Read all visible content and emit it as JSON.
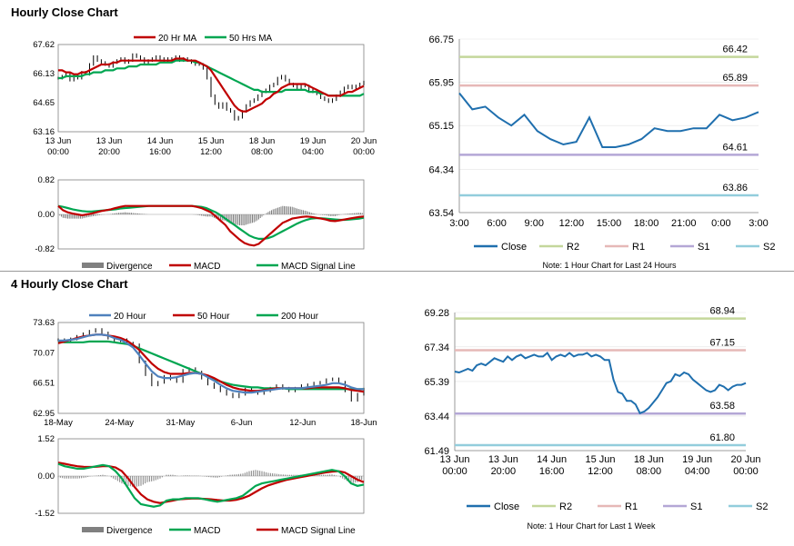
{
  "sections": {
    "hourly_title": "Hourly Close Chart",
    "four_hourly_title": "4 Hourly Close Chart"
  },
  "colors": {
    "ma20": "#c00000",
    "ma50": "#00a651",
    "ma200": "#00a651",
    "ma20_4h": "#4f81bd",
    "ma50_4h": "#c00000",
    "close": "#1f6fae",
    "r2": "#c4d79b",
    "r1": "#e6b8b7",
    "s1": "#b4a7d6",
    "s2": "#92cddc",
    "divergence": "#808080",
    "macd": "#c00000",
    "signal": "#00a651",
    "price": "#000000",
    "grid": "#cccccc",
    "axis": "#808080"
  },
  "chart_data": [
    {
      "id": "hourly-price",
      "type": "line",
      "title": "Hourly Close Chart",
      "legend": [
        "20 Hr MA",
        "50 Hrs MA"
      ],
      "ylim": [
        63.16,
        67.62
      ],
      "yticks": [
        "67.62",
        "66.13",
        "64.65",
        "63.16"
      ],
      "ytick_values": [
        67.62,
        66.13,
        64.65,
        63.16
      ],
      "xtick_labels": [
        [
          "13 Jun",
          "00:00"
        ],
        [
          "13 Jun",
          "20:00"
        ],
        [
          "14 Jun",
          "16:00"
        ],
        [
          "15 Jun",
          "12:00"
        ],
        [
          "18 Jun",
          "08:00"
        ],
        [
          "19 Jun",
          "04:00"
        ],
        [
          "20 Jun",
          "00:00"
        ]
      ],
      "price": [
        65.9,
        66.0,
        66.1,
        65.8,
        66.0,
        65.9,
        66.2,
        66.1,
        66.6,
        67.0,
        66.8,
        66.7,
        66.6,
        66.5,
        66.7,
        66.8,
        66.9,
        66.7,
        66.8,
        67.1,
        67.0,
        66.9,
        66.7,
        66.8,
        66.9,
        67.0,
        66.9,
        66.8,
        66.9,
        66.9,
        67.0,
        66.8,
        66.9,
        66.8,
        66.7,
        66.6,
        66.6,
        66.4,
        65.9,
        65.0,
        64.6,
        64.4,
        64.6,
        64.3,
        64.2,
        63.8,
        63.9,
        64.2,
        64.5,
        64.7,
        64.8,
        65.0,
        65.2,
        65.3,
        65.5,
        65.6,
        65.9,
        66.0,
        65.8,
        65.6,
        65.5,
        65.4,
        65.5,
        65.5,
        65.3,
        65.2,
        65.1,
        64.9,
        64.8,
        64.7,
        64.8,
        65.0,
        65.2,
        65.4,
        65.5,
        65.4,
        65.5,
        65.6,
        65.7
      ],
      "ma20": [
        66.3,
        66.3,
        66.2,
        66.2,
        66.1,
        66.1,
        66.2,
        66.2,
        66.3,
        66.4,
        66.5,
        66.6,
        66.6,
        66.6,
        66.7,
        66.7,
        66.8,
        66.8,
        66.8,
        66.8,
        66.8,
        66.8,
        66.8,
        66.8,
        66.8,
        66.8,
        66.8,
        66.8,
        66.8,
        66.8,
        66.9,
        66.9,
        66.9,
        66.8,
        66.8,
        66.8,
        66.7,
        66.6,
        66.5,
        66.3,
        66.0,
        65.7,
        65.4,
        65.1,
        64.8,
        64.5,
        64.3,
        64.2,
        64.2,
        64.3,
        64.4,
        64.5,
        64.6,
        64.8,
        64.9,
        65.1,
        65.2,
        65.4,
        65.5,
        65.6,
        65.6,
        65.6,
        65.6,
        65.6,
        65.5,
        65.4,
        65.3,
        65.2,
        65.1,
        65.0,
        65.0,
        65.0,
        65.0,
        65.1,
        65.2,
        65.2,
        65.3,
        65.4,
        65.5
      ],
      "ma50": [
        65.9,
        65.9,
        66.0,
        66.0,
        66.0,
        66.0,
        66.0,
        66.1,
        66.1,
        66.2,
        66.2,
        66.2,
        66.3,
        66.3,
        66.3,
        66.4,
        66.4,
        66.4,
        66.5,
        66.5,
        66.5,
        66.6,
        66.6,
        66.6,
        66.6,
        66.6,
        66.7,
        66.7,
        66.7,
        66.7,
        66.8,
        66.8,
        66.8,
        66.8,
        66.8,
        66.7,
        66.7,
        66.6,
        66.5,
        66.4,
        66.3,
        66.2,
        66.1,
        66.0,
        65.9,
        65.8,
        65.7,
        65.6,
        65.5,
        65.4,
        65.3,
        65.3,
        65.2,
        65.2,
        65.2,
        65.2,
        65.2,
        65.2,
        65.3,
        65.3,
        65.3,
        65.3,
        65.3,
        65.3,
        65.2,
        65.2,
        65.2,
        65.1,
        65.1,
        65.0,
        65.0,
        65.0,
        65.0,
        65.0,
        65.0,
        65.0,
        65.0,
        65.0,
        65.1
      ]
    },
    {
      "id": "hourly-macd",
      "type": "line",
      "legend": [
        "Divergence",
        "MACD",
        "MACD Signal Line"
      ],
      "ylim": [
        -0.82,
        0.82
      ],
      "yticks": [
        "0.82",
        "0.00",
        "-0.82"
      ],
      "ytick_values": [
        0.82,
        0.0,
        -0.82
      ],
      "macd": [
        0.2,
        0.1,
        0.05,
        0.02,
        0.0,
        -0.02,
        0.0,
        0.02,
        0.05,
        0.08,
        0.1,
        0.12,
        0.15,
        0.18,
        0.2,
        0.2,
        0.2,
        0.2,
        0.2,
        0.2,
        0.2,
        0.2,
        0.2,
        0.2,
        0.2,
        0.2,
        0.2,
        0.2,
        0.2,
        0.18,
        0.15,
        0.1,
        0.05,
        -0.05,
        -0.15,
        -0.25,
        -0.4,
        -0.5,
        -0.6,
        -0.68,
        -0.72,
        -0.74,
        -0.7,
        -0.6,
        -0.5,
        -0.4,
        -0.3,
        -0.2,
        -0.15,
        -0.1,
        -0.08,
        -0.06,
        -0.05,
        -0.06,
        -0.08,
        -0.1,
        -0.12,
        -0.15,
        -0.16,
        -0.14,
        -0.12,
        -0.1,
        -0.08,
        -0.06,
        -0.05
      ],
      "signal": [
        0.2,
        0.18,
        0.15,
        0.12,
        0.1,
        0.08,
        0.07,
        0.07,
        0.08,
        0.09,
        0.1,
        0.11,
        0.12,
        0.14,
        0.15,
        0.16,
        0.17,
        0.18,
        0.19,
        0.2,
        0.2,
        0.2,
        0.2,
        0.2,
        0.2,
        0.2,
        0.2,
        0.2,
        0.2,
        0.19,
        0.18,
        0.15,
        0.1,
        0.05,
        -0.02,
        -0.1,
        -0.18,
        -0.26,
        -0.34,
        -0.42,
        -0.5,
        -0.55,
        -0.58,
        -0.58,
        -0.56,
        -0.52,
        -0.46,
        -0.4,
        -0.34,
        -0.28,
        -0.22,
        -0.17,
        -0.13,
        -0.1,
        -0.09,
        -0.09,
        -0.1,
        -0.11,
        -0.12,
        -0.13,
        -0.13,
        -0.12,
        -0.11,
        -0.1,
        -0.08
      ],
      "divergence": [
        0.0,
        -0.08,
        -0.1,
        -0.1,
        -0.1,
        -0.1,
        -0.07,
        -0.05,
        -0.03,
        -0.01,
        0.0,
        0.01,
        0.03,
        0.04,
        0.05,
        0.04,
        0.03,
        0.02,
        0.01,
        0.0,
        0.0,
        0.0,
        0.0,
        0.0,
        0.0,
        0.0,
        0.0,
        0.0,
        0.0,
        -0.01,
        -0.03,
        -0.05,
        -0.05,
        -0.1,
        -0.13,
        -0.15,
        -0.22,
        -0.24,
        -0.26,
        -0.26,
        -0.22,
        -0.19,
        -0.12,
        -0.02,
        0.06,
        0.12,
        0.16,
        0.2,
        0.19,
        0.18,
        0.14,
        0.11,
        0.08,
        0.04,
        0.01,
        -0.01,
        -0.02,
        -0.04,
        -0.04,
        -0.01,
        0.01,
        0.02,
        0.03,
        0.04,
        0.03
      ]
    },
    {
      "id": "hourly-pivots",
      "type": "line",
      "ylim": [
        63.54,
        66.75
      ],
      "yticks": [
        "66.75",
        "65.95",
        "65.15",
        "64.34",
        "63.54"
      ],
      "ytick_values": [
        66.75,
        65.95,
        65.15,
        64.34,
        63.54
      ],
      "xticks": [
        "3:00",
        "6:00",
        "9:00",
        "12:00",
        "15:00",
        "18:00",
        "21:00",
        "0:00",
        "3:00"
      ],
      "close": [
        65.75,
        65.45,
        65.5,
        65.3,
        65.15,
        65.35,
        65.05,
        64.9,
        64.8,
        64.85,
        65.3,
        64.75,
        64.75,
        64.8,
        64.9,
        65.1,
        65.05,
        65.05,
        65.1,
        65.1,
        65.35,
        65.25,
        65.3,
        65.4
      ],
      "levels": [
        {
          "name": "R2",
          "value": 66.42,
          "label": "66.42"
        },
        {
          "name": "R1",
          "value": 65.89,
          "label": "65.89"
        },
        {
          "name": "S1",
          "value": 64.61,
          "label": "64.61"
        },
        {
          "name": "S2",
          "value": 63.86,
          "label": "63.86"
        }
      ],
      "legend": [
        "Close",
        "R2",
        "R1",
        "S1",
        "S2"
      ],
      "note": "Note: 1 Hour Chart for Last 24 Hours"
    },
    {
      "id": "four-hourly-price",
      "type": "line",
      "title": "4 Hourly Close Chart",
      "legend": [
        "20 Hour",
        "50 Hour",
        "200 Hour"
      ],
      "ylim": [
        62.95,
        73.63
      ],
      "yticks": [
        "73.63",
        "70.07",
        "66.51",
        "62.95"
      ],
      "ytick_values": [
        73.63,
        70.07,
        66.51,
        62.95
      ],
      "xticks": [
        "18-May",
        "24-May",
        "31-May",
        "6-Jun",
        "12-Jun",
        "18-Jun"
      ],
      "price": [
        71.6,
        71.4,
        71.7,
        72.0,
        72.3,
        72.6,
        72.8,
        72.4,
        71.8,
        71.5,
        71.6,
        71.2,
        71.0,
        69.0,
        67.5,
        66.3,
        66.6,
        67.3,
        67.0,
        66.7,
        68.0,
        68.2,
        67.8,
        67.1,
        66.4,
        66.0,
        65.6,
        65.2,
        64.9,
        65.2,
        65.8,
        65.5,
        65.3,
        65.6,
        65.9,
        66.2,
        65.9,
        65.6,
        65.9,
        66.2,
        66.3,
        66.5,
        66.6,
        66.9,
        67.0,
        66.6,
        65.6,
        64.5,
        65.2,
        65.8
      ],
      "ma20": [
        71.5,
        71.5,
        71.6,
        71.7,
        71.9,
        72.1,
        72.2,
        72.2,
        72.1,
        71.8,
        71.6,
        71.2,
        70.7,
        69.8,
        68.8,
        67.9,
        67.3,
        67.1,
        67.1,
        67.2,
        67.4,
        67.6,
        67.7,
        67.6,
        67.2,
        66.8,
        66.3,
        65.9,
        65.6,
        65.5,
        65.4,
        65.4,
        65.5,
        65.6,
        65.7,
        65.8,
        65.9,
        65.9,
        65.9,
        65.9,
        66.0,
        66.1,
        66.2,
        66.3,
        66.5,
        66.5,
        66.3,
        66.0,
        65.8,
        65.8
      ],
      "ma50": [
        71.2,
        71.4,
        71.6,
        71.8,
        72.0,
        72.1,
        72.2,
        72.2,
        72.1,
        72.0,
        71.8,
        71.5,
        71.0,
        70.4,
        69.6,
        68.8,
        68.2,
        67.8,
        67.6,
        67.6,
        67.6,
        67.7,
        67.7,
        67.6,
        67.4,
        67.1,
        66.7,
        66.3,
        66.0,
        65.8,
        65.7,
        65.6,
        65.6,
        65.7,
        65.8,
        65.9,
        65.9,
        65.9,
        65.9,
        65.9,
        65.9,
        66.0,
        66.0,
        66.0,
        66.0,
        66.0,
        65.9,
        65.7,
        65.6,
        65.5
      ],
      "ma200": [
        71.4,
        71.3,
        71.3,
        71.3,
        71.3,
        71.4,
        71.4,
        71.4,
        71.4,
        71.3,
        71.2,
        71.1,
        70.9,
        70.6,
        70.3,
        70.0,
        69.7,
        69.4,
        69.1,
        68.8,
        68.5,
        68.2,
        67.9,
        67.6,
        67.3,
        67.0,
        66.7,
        66.5,
        66.3,
        66.2,
        66.1,
        66.0,
        66.0,
        65.9,
        65.9,
        65.9,
        65.9,
        65.8,
        65.8,
        65.8,
        65.8,
        65.8,
        65.8,
        65.8,
        65.8,
        65.8,
        65.8,
        65.8,
        65.8,
        65.8
      ]
    },
    {
      "id": "four-hourly-macd",
      "type": "line",
      "legend": [
        "Divergence",
        "MACD",
        "MACD Signal Line"
      ],
      "ylim": [
        -1.52,
        1.52
      ],
      "yticks": [
        "1.52",
        "0.00",
        "-1.52"
      ],
      "ytick_values": [
        1.52,
        0.0,
        -1.52
      ],
      "macd": [
        0.5,
        0.4,
        0.35,
        0.3,
        0.3,
        0.35,
        0.4,
        0.45,
        0.4,
        0.2,
        -0.1,
        -0.5,
        -0.9,
        -1.15,
        -1.2,
        -1.25,
        -1.2,
        -1.0,
        -0.95,
        -0.95,
        -0.9,
        -0.9,
        -0.9,
        -0.95,
        -1.0,
        -1.05,
        -1.0,
        -0.95,
        -0.9,
        -0.8,
        -0.6,
        -0.4,
        -0.3,
        -0.25,
        -0.2,
        -0.15,
        -0.1,
        -0.05,
        0.0,
        0.05,
        0.1,
        0.15,
        0.2,
        0.25,
        0.2,
        0.0,
        -0.3,
        -0.4,
        -0.35
      ],
      "signal": [
        0.55,
        0.5,
        0.45,
        0.4,
        0.38,
        0.37,
        0.38,
        0.4,
        0.4,
        0.35,
        0.2,
        -0.1,
        -0.45,
        -0.75,
        -0.95,
        -1.05,
        -1.1,
        -1.05,
        -1.0,
        -0.95,
        -0.93,
        -0.92,
        -0.92,
        -0.93,
        -0.95,
        -0.98,
        -1.0,
        -1.0,
        -0.97,
        -0.9,
        -0.8,
        -0.65,
        -0.5,
        -0.38,
        -0.3,
        -0.22,
        -0.15,
        -0.1,
        -0.05,
        0.0,
        0.05,
        0.1,
        0.15,
        0.18,
        0.2,
        0.15,
        0.0,
        -0.15,
        -0.25
      ],
      "divergence": [
        -0.05,
        -0.1,
        -0.1,
        -0.1,
        -0.08,
        -0.02,
        0.02,
        0.05,
        0.0,
        -0.15,
        -0.3,
        -0.4,
        -0.45,
        -0.4,
        -0.25,
        -0.2,
        -0.1,
        0.05,
        0.05,
        0.0,
        0.03,
        0.02,
        0.02,
        -0.02,
        -0.05,
        -0.07,
        0.0,
        0.05,
        0.07,
        0.1,
        0.2,
        0.25,
        0.2,
        0.13,
        0.1,
        0.07,
        0.05,
        0.05,
        0.05,
        0.05,
        0.05,
        0.05,
        0.05,
        0.07,
        0.0,
        -0.15,
        -0.3,
        -0.25,
        -0.1
      ]
    },
    {
      "id": "weekly-pivots",
      "type": "line",
      "ylim": [
        61.49,
        69.28
      ],
      "yticks": [
        "69.28",
        "67.34",
        "65.39",
        "63.44",
        "61.49"
      ],
      "ytick_values": [
        69.28,
        67.34,
        65.39,
        63.44,
        61.49
      ],
      "xtick_labels": [
        [
          "13 Jun",
          "00:00"
        ],
        [
          "13 Jun",
          "20:00"
        ],
        [
          "14 Jun",
          "16:00"
        ],
        [
          "15 Jun",
          "12:00"
        ],
        [
          "18 Jun",
          "08:00"
        ],
        [
          "19 Jun",
          "04:00"
        ],
        [
          "20 Jun",
          "00:00"
        ]
      ],
      "close": [
        65.95,
        65.9,
        66.0,
        66.1,
        66.0,
        66.3,
        66.4,
        66.3,
        66.5,
        66.7,
        66.6,
        66.5,
        66.8,
        66.6,
        66.8,
        66.9,
        66.7,
        66.8,
        66.9,
        66.8,
        66.8,
        67.0,
        66.6,
        66.8,
        66.9,
        66.8,
        67.0,
        66.8,
        66.9,
        66.9,
        67.0,
        66.8,
        66.9,
        66.8,
        66.6,
        66.6,
        65.5,
        64.8,
        64.7,
        64.3,
        64.3,
        64.1,
        63.6,
        63.7,
        63.9,
        64.2,
        64.5,
        64.9,
        65.3,
        65.4,
        65.8,
        65.7,
        65.9,
        65.8,
        65.5,
        65.3,
        65.1,
        64.9,
        64.8,
        64.9,
        65.2,
        65.1,
        64.9,
        65.1,
        65.2,
        65.2,
        65.3
      ],
      "levels": [
        {
          "name": "R2",
          "value": 68.94,
          "label": "68.94"
        },
        {
          "name": "R1",
          "value": 67.15,
          "label": "67.15"
        },
        {
          "name": "S1",
          "value": 63.58,
          "label": "63.58"
        },
        {
          "name": "S2",
          "value": 61.8,
          "label": "61.80"
        }
      ],
      "legend": [
        "Close",
        "R2",
        "R1",
        "S1",
        "S2"
      ],
      "note": "Note: 1 Hour Chart for Last 1 Week"
    }
  ]
}
